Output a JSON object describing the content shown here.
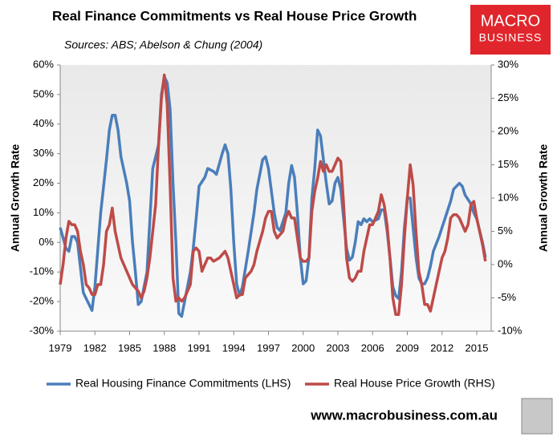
{
  "chart_data": {
    "type": "line",
    "title": "Real Finance Commitments vs Real House Price Growth",
    "subtitle": "Sources: ABS; Abelson & Chung (2004)",
    "y_label": "Annual Growth Rate",
    "y2_label": "Annual Growth Rate",
    "logo": [
      "MACRO",
      "BUSINESS"
    ],
    "footer": "www.macrobusiness.com.au",
    "xlim": [
      1979,
      2016.25
    ],
    "xticks": [
      1979,
      1982,
      1985,
      1988,
      1991,
      1994,
      1997,
      2000,
      2003,
      2006,
      2009,
      2012,
      2015
    ],
    "ylim": [
      -30,
      60
    ],
    "yticks": [
      {
        "value": -30,
        "label": "-30%"
      },
      {
        "value": -20,
        "label": "-20%"
      },
      {
        "value": -10,
        "label": "-10%"
      },
      {
        "value": 0,
        "label": "0%"
      },
      {
        "value": 10,
        "label": "10%"
      },
      {
        "value": 20,
        "label": "20%"
      },
      {
        "value": 30,
        "label": "30%"
      },
      {
        "value": 40,
        "label": "40%"
      },
      {
        "value": 50,
        "label": "50%"
      },
      {
        "value": 60,
        "label": "60%"
      }
    ],
    "y2lim": [
      -10,
      30
    ],
    "y2ticks": [
      {
        "value": -10,
        "label": "-10%"
      },
      {
        "value": -5,
        "label": "-5%"
      },
      {
        "value": 0,
        "label": "0%"
      },
      {
        "value": 5,
        "label": "5%"
      },
      {
        "value": 10,
        "label": "10%"
      },
      {
        "value": 15,
        "label": "15%"
      },
      {
        "value": 20,
        "label": "20%"
      },
      {
        "value": 25,
        "label": "25%"
      },
      {
        "value": 30,
        "label": "30%"
      }
    ],
    "grid": false,
    "legend": "bottom",
    "series": [
      {
        "name": "Real Housing Finance Commitments (LHS)",
        "color": "#4a7ebb",
        "axis": "y",
        "x": [
          1979.0,
          1979.5,
          1979.75,
          1980.0,
          1980.25,
          1980.5,
          1981.0,
          1981.5,
          1981.75,
          1982.0,
          1982.5,
          1983.0,
          1983.25,
          1983.5,
          1983.75,
          1984.0,
          1984.25,
          1984.75,
          1985.0,
          1985.25,
          1985.5,
          1985.75,
          1986.0,
          1986.5,
          1987.0,
          1987.5,
          1987.75,
          1988.0,
          1988.25,
          1988.5,
          1988.75,
          1989.0,
          1989.25,
          1989.5,
          1989.75,
          1990.25,
          1990.5,
          1990.75,
          1991.0,
          1991.5,
          1991.75,
          1992.25,
          1992.5,
          1993.0,
          1993.25,
          1993.5,
          1993.75,
          1994.0,
          1994.25,
          1994.5,
          1994.75,
          1995.25,
          1995.75,
          1996.0,
          1996.5,
          1996.75,
          1997.0,
          1997.5,
          1997.75,
          1998.0,
          1998.5,
          1998.75,
          1999.0,
          1999.25,
          1999.5,
          1999.75,
          2000.0,
          2000.25,
          2000.5,
          2000.75,
          2001.0,
          2001.25,
          2001.5,
          2001.75,
          2002.0,
          2002.25,
          2002.5,
          2002.75,
          2003.0,
          2003.25,
          2003.5,
          2003.75,
          2004.0,
          2004.25,
          2004.5,
          2004.75,
          2005.0,
          2005.25,
          2005.5,
          2005.75,
          2006.0,
          2006.5,
          2006.75,
          2007.0,
          2007.25,
          2007.5,
          2007.75,
          2008.0,
          2008.25,
          2008.5,
          2008.75,
          2009.0,
          2009.25,
          2009.5,
          2009.75,
          2010.0,
          2010.25,
          2010.5,
          2010.75,
          2011.0,
          2011.25,
          2011.75,
          2012.0,
          2012.25,
          2012.75,
          2013.0,
          2013.5,
          2013.75,
          2014.0,
          2014.5,
          2014.75,
          2015.0,
          2015.5,
          2015.75
        ],
        "values": [
          5,
          -2,
          -3,
          2,
          2,
          0,
          -17,
          -21,
          -23,
          -15,
          10,
          28,
          38,
          43,
          43,
          38,
          29,
          20,
          14,
          0,
          -10,
          -21,
          -20,
          -10,
          25,
          33,
          50,
          56,
          54,
          45,
          20,
          0,
          -24,
          -25,
          -20,
          -10,
          -2,
          8,
          19,
          22,
          25,
          24,
          23,
          30,
          33,
          30,
          18,
          0,
          -14,
          -18,
          -15,
          -3,
          10,
          18,
          28,
          29,
          25,
          10,
          5,
          4,
          10,
          20,
          26,
          22,
          10,
          -5,
          -14,
          -13,
          -5,
          15,
          25,
          38,
          36,
          28,
          20,
          13,
          14,
          20,
          22,
          18,
          8,
          -2,
          -6,
          -5,
          0,
          7,
          6,
          8,
          7,
          8,
          7,
          8,
          11,
          11,
          4,
          -5,
          -15,
          -18,
          -19,
          -10,
          5,
          15,
          15,
          5,
          -5,
          -12,
          -14,
          -14,
          -12,
          -8,
          -3,
          2,
          5,
          8,
          14,
          18,
          20,
          19,
          16,
          13,
          10,
          8,
          0,
          -5
        ]
      },
      {
        "name": "Real House Price Growth (RHS)",
        "color": "#be4b48",
        "axis": "y2",
        "x": [
          1979.0,
          1979.25,
          1979.5,
          1979.75,
          1980.0,
          1980.25,
          1980.5,
          1980.75,
          1981.0,
          1981.25,
          1981.5,
          1981.75,
          1982.0,
          1982.25,
          1982.5,
          1982.75,
          1983.0,
          1983.25,
          1983.5,
          1983.75,
          1984.0,
          1984.25,
          1984.75,
          1985.0,
          1985.25,
          1985.75,
          1986.0,
          1986.25,
          1986.5,
          1986.75,
          1987.0,
          1987.25,
          1987.5,
          1987.75,
          1988.0,
          1988.25,
          1988.5,
          1988.75,
          1989.0,
          1989.25,
          1989.5,
          1989.75,
          1990.0,
          1990.25,
          1990.5,
          1990.75,
          1991.0,
          1991.25,
          1991.5,
          1991.75,
          1992.0,
          1992.25,
          1992.75,
          1993.0,
          1993.25,
          1993.5,
          1993.75,
          1994.0,
          1994.25,
          1994.5,
          1994.75,
          1995.0,
          1995.5,
          1995.75,
          1996.0,
          1996.5,
          1996.75,
          1997.0,
          1997.25,
          1997.5,
          1997.75,
          1998.0,
          1998.25,
          1998.5,
          1998.75,
          1999.0,
          1999.25,
          1999.5,
          1999.75,
          2000.0,
          2000.25,
          2000.5,
          2000.75,
          2001.0,
          2001.25,
          2001.5,
          2001.75,
          2002.0,
          2002.25,
          2002.5,
          2002.75,
          2003.0,
          2003.25,
          2003.5,
          2003.75,
          2004.0,
          2004.25,
          2004.5,
          2004.75,
          2005.0,
          2005.25,
          2005.5,
          2005.75,
          2006.0,
          2006.25,
          2006.5,
          2006.75,
          2007.0,
          2007.25,
          2007.5,
          2007.75,
          2008.0,
          2008.25,
          2008.5,
          2008.75,
          2009.0,
          2009.25,
          2009.5,
          2009.75,
          2010.0,
          2010.25,
          2010.5,
          2010.75,
          2011.0,
          2011.25,
          2011.5,
          2011.75,
          2012.0,
          2012.25,
          2012.5,
          2012.75,
          2013.0,
          2013.25,
          2013.5,
          2013.75,
          2014.0,
          2014.25,
          2014.5,
          2014.75,
          2015.0,
          2015.25,
          2015.5,
          2015.75
        ],
        "values": [
          -3,
          0,
          4,
          6.5,
          6,
          6,
          5,
          2,
          0,
          -3,
          -3.5,
          -4.5,
          -4.5,
          -3,
          -3,
          0,
          5,
          6,
          8.5,
          5,
          3,
          1,
          -1,
          -2,
          -3,
          -4,
          -5,
          -4,
          -2,
          1,
          5,
          9,
          18,
          25,
          28.5,
          24,
          12,
          -2,
          -5.5,
          -5,
          -5.5,
          -5,
          -4,
          -3,
          2,
          2.5,
          2,
          -1,
          0,
          1,
          1,
          0.5,
          1,
          1.5,
          2,
          1,
          -1,
          -3,
          -5,
          -4.5,
          -4.5,
          -2,
          -1,
          0,
          2,
          5,
          7,
          8,
          8,
          5,
          4,
          4.5,
          5,
          7,
          8,
          7,
          7,
          4,
          1,
          0.5,
          0.5,
          1,
          8,
          11,
          13,
          15.5,
          14,
          15,
          14,
          14,
          15,
          16,
          15.5,
          9,
          1,
          -2,
          -2.5,
          -2,
          -1,
          -1,
          2,
          4,
          6,
          6,
          7,
          8,
          10.5,
          9,
          6,
          1,
          -5,
          -7.5,
          -7.5,
          -3,
          4,
          10,
          15,
          12,
          5,
          -1,
          -3,
          -6,
          -6,
          -7,
          -5,
          -3,
          -1,
          1,
          2,
          4,
          7,
          7.5,
          7.5,
          7,
          6,
          5,
          6,
          9,
          9.5,
          7,
          5,
          3,
          0.5
        ]
      }
    ]
  }
}
